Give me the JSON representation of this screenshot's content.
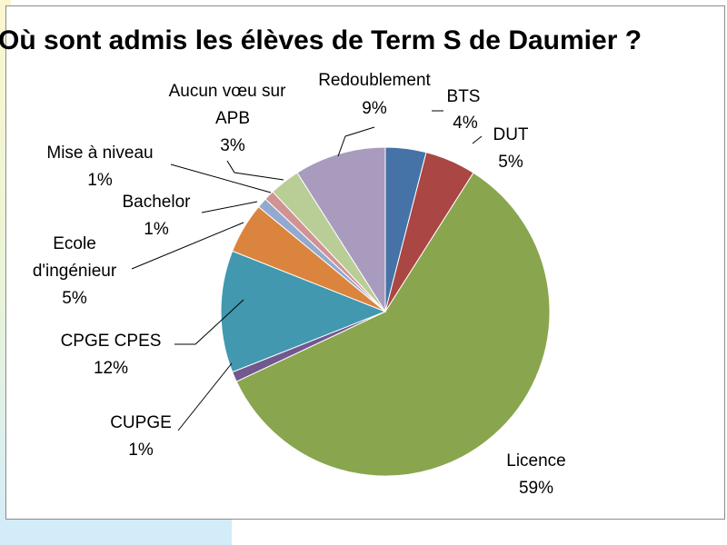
{
  "chart_data": {
    "type": "pie",
    "title": "Où sont admis les élèves de Term S de Daumier ?",
    "unit": "%",
    "slices": [
      {
        "label": "BTS",
        "value": 4,
        "display": "4%",
        "color": "#4572a7"
      },
      {
        "label": "DUT",
        "value": 5,
        "display": "5%",
        "color": "#aa4643"
      },
      {
        "label": "Licence",
        "value": 59,
        "display": "59%",
        "color": "#89a54e"
      },
      {
        "label": "CUPGE",
        "value": 1,
        "display": "1%",
        "color": "#71588f"
      },
      {
        "label": "CPGE CPES",
        "value": 12,
        "display": "12%",
        "color": "#4198af"
      },
      {
        "label": "Ecole d'ingénieur",
        "value": 5,
        "display": "5%",
        "color": "#db843d"
      },
      {
        "label": "Bachelor",
        "value": 1,
        "display": "1%",
        "color": "#93a9cf"
      },
      {
        "label": "Mise à niveau",
        "value": 1,
        "display": "1%",
        "color": "#d19392"
      },
      {
        "label": "Aucun vœu sur APB",
        "value": 3,
        "display": "3%",
        "color": "#b9cd96"
      },
      {
        "label": "Redoublement",
        "value": 9,
        "display": "9%",
        "color": "#a99bbd"
      }
    ],
    "legend": "none",
    "data_labels": "outside with leader lines"
  }
}
